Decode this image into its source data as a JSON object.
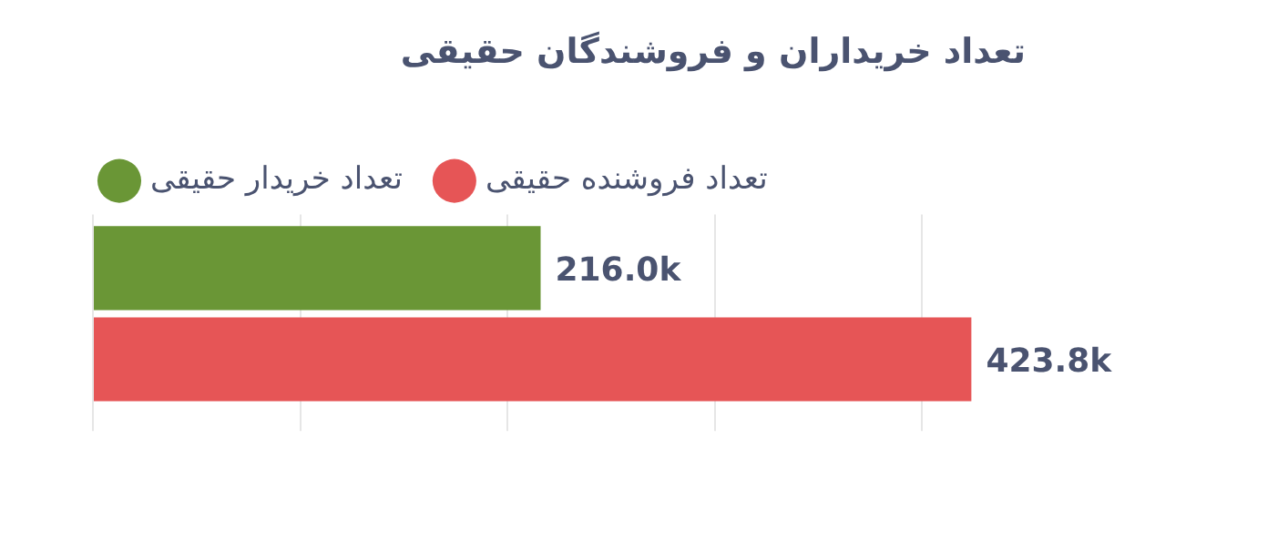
{
  "chart_data": {
    "type": "bar",
    "orientation": "horizontal",
    "title": "تعداد خریداران و فروشندگان حقیقی",
    "categories": [
      null
    ],
    "series": [
      {
        "name": "تعداد خریدار حقیقی",
        "color": "#6a9636",
        "values": [
          216000
        ],
        "value_labels": [
          "216.0k"
        ]
      },
      {
        "name": "تعداد فروشنده حقیقی",
        "color": "#e65556",
        "values": [
          423800
        ],
        "value_labels": [
          "423.8k"
        ]
      }
    ],
    "xticks": [
      {
        "value": 0,
        "label": null
      },
      {
        "value": 100000,
        "label": null
      },
      {
        "value": 200000,
        "label": null
      },
      {
        "value": 300000,
        "label": null
      },
      {
        "value": 400000,
        "label": null
      }
    ],
    "grid": "x",
    "legend": "top left"
  }
}
